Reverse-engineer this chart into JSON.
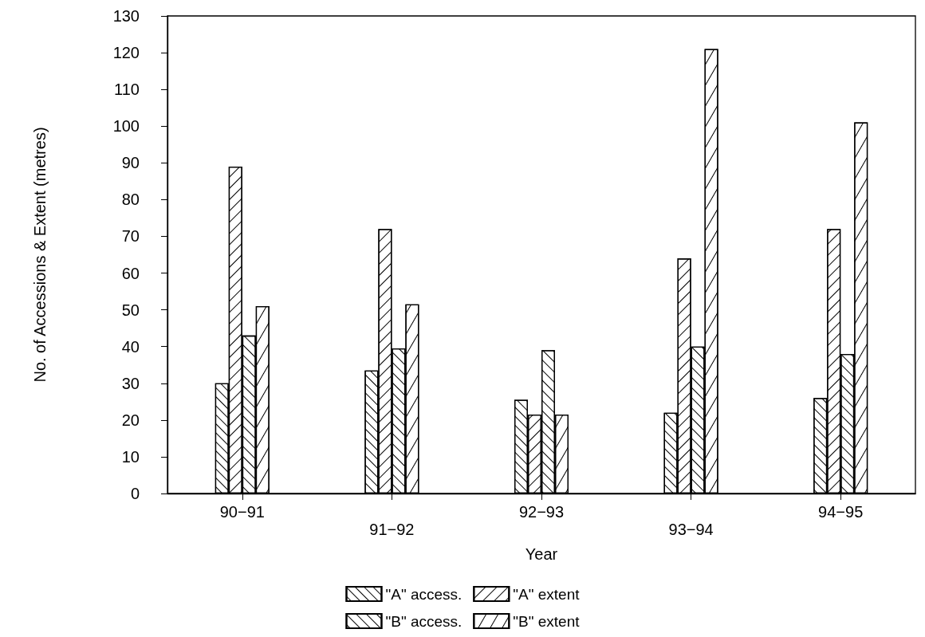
{
  "chart_data": {
    "type": "bar",
    "xlabel": "Year",
    "ylabel": "No. of Accessions & Extent (metres)",
    "categories": [
      "90−91",
      "91−92",
      "92−93",
      "93−94",
      "94−95"
    ],
    "series": [
      {
        "name": "\"A\" access.",
        "color": "#000000",
        "values": [
          30,
          33.5,
          25.5,
          22,
          26
        ]
      },
      {
        "name": "\"A\" extent",
        "color": "#000000",
        "values": [
          89,
          72,
          21.5,
          64,
          72
        ]
      },
      {
        "name": "\"B\" access.",
        "color": "#000000",
        "values": [
          43,
          39.5,
          39,
          40,
          38
        ]
      },
      {
        "name": "\"B\" extent",
        "color": "#000000",
        "values": [
          51,
          51.5,
          21.5,
          121,
          101
        ]
      }
    ],
    "ylim": [
      0,
      130
    ],
    "yticks": [
      0,
      10,
      20,
      30,
      40,
      50,
      60,
      70,
      80,
      90,
      100,
      110,
      120,
      130
    ],
    "grid": false,
    "legend": "bottom"
  }
}
